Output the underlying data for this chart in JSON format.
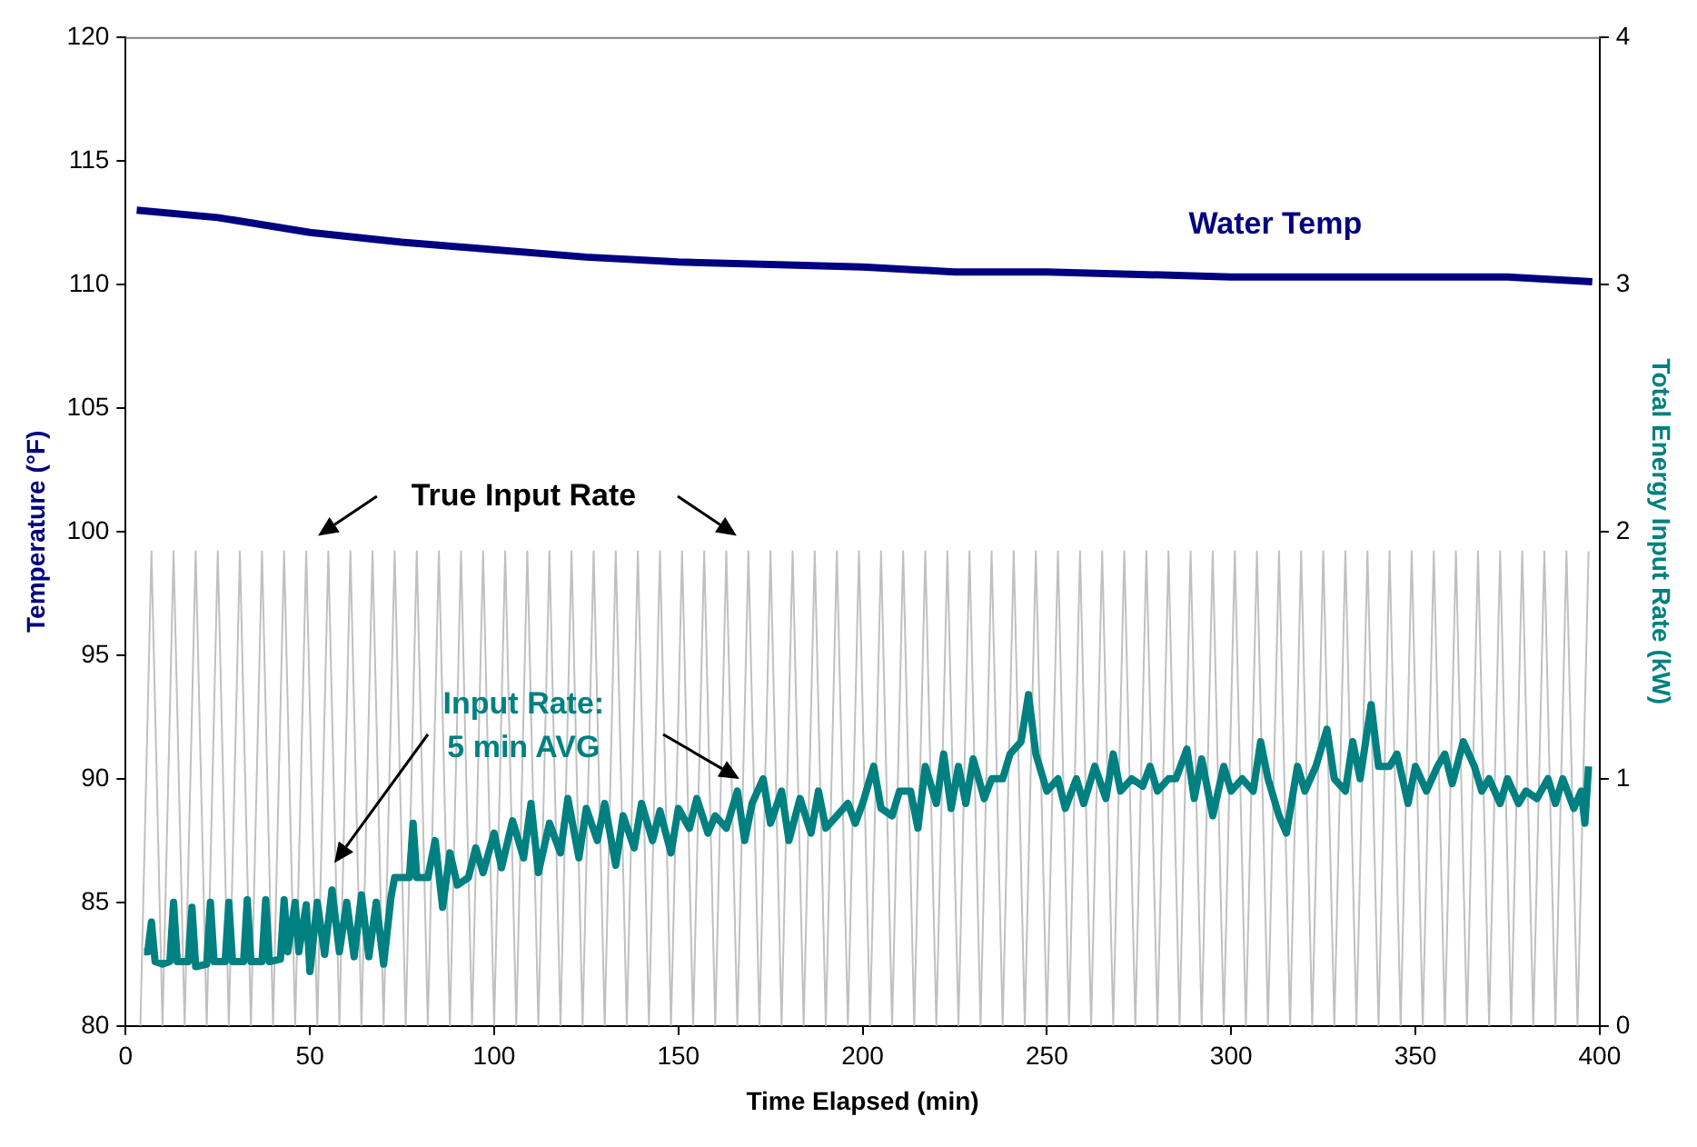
{
  "chart_data": {
    "type": "line",
    "xlabel": "Time Elapsed (min)",
    "ylabel": "Temperature (°F)",
    "y2label": "Total Energy Input Rate (kW)",
    "xlim": [
      0,
      400
    ],
    "xticks": [
      0,
      50,
      100,
      150,
      200,
      250,
      300,
      350,
      400
    ],
    "ylim": [
      80,
      120
    ],
    "yticks": [
      80,
      85,
      90,
      95,
      100,
      105,
      110,
      115,
      120
    ],
    "y2lim": [
      0,
      4
    ],
    "y2ticks": [
      0,
      1,
      2,
      3,
      4
    ],
    "grid": false,
    "legend": false,
    "series": [
      {
        "name": "True Input Rate",
        "color": "#c0c0c0",
        "axis": "y2",
        "x": [
          4,
          7,
          10,
          13,
          16,
          19,
          22,
          25,
          28,
          31,
          34,
          37,
          40,
          43,
          46,
          49,
          52,
          55,
          58,
          61,
          64,
          67,
          70,
          73,
          76,
          79,
          82,
          85,
          88,
          91,
          94,
          97,
          100,
          103,
          106,
          109,
          112,
          115,
          118,
          121,
          124,
          127,
          130,
          133,
          136,
          139,
          142,
          145,
          148,
          151,
          154,
          157,
          160,
          163,
          166,
          169,
          172,
          175,
          178,
          181,
          184,
          187,
          190,
          193,
          196,
          199,
          202,
          205,
          208,
          211,
          214,
          217,
          220,
          223,
          226,
          229,
          232,
          235,
          238,
          241,
          244,
          247,
          250,
          253,
          256,
          259,
          262,
          265,
          268,
          271,
          274,
          277,
          280,
          283,
          286,
          289,
          292,
          295,
          298,
          301,
          304,
          307,
          310,
          313,
          316,
          319,
          322,
          325,
          328,
          331,
          334,
          337,
          340,
          343,
          346,
          349,
          352,
          355,
          358,
          361,
          364,
          367,
          370,
          373,
          376,
          379,
          382,
          385,
          388,
          391,
          394,
          397
        ],
        "values": [
          0,
          1.92,
          0,
          1.92,
          0,
          1.92,
          0,
          1.92,
          0,
          1.92,
          0,
          1.92,
          0,
          1.92,
          0,
          1.92,
          0,
          1.92,
          0,
          1.92,
          0,
          1.92,
          0,
          1.92,
          0,
          1.92,
          0,
          1.92,
          0,
          1.92,
          0,
          1.92,
          0,
          1.92,
          0,
          1.92,
          0,
          1.92,
          0,
          1.92,
          0,
          1.92,
          0,
          1.92,
          0,
          1.92,
          0,
          1.92,
          0,
          1.92,
          0,
          1.92,
          0,
          1.92,
          0,
          1.92,
          0,
          1.92,
          0,
          1.92,
          0,
          1.92,
          0,
          1.92,
          0,
          1.92,
          0,
          1.92,
          0,
          1.92,
          0,
          1.92,
          0,
          1.92,
          0,
          1.92,
          0,
          1.92,
          0,
          1.92,
          0,
          1.92,
          0,
          1.92,
          0,
          1.92,
          0,
          1.92,
          0,
          1.92,
          0,
          1.92,
          0,
          1.92,
          0,
          1.92,
          0,
          1.92,
          0,
          1.92,
          0,
          1.92,
          0,
          1.92,
          0,
          1.92,
          0,
          1.92,
          0,
          1.92,
          0,
          1.92,
          0,
          1.92,
          0,
          1.92,
          0,
          1.92,
          0,
          1.92,
          0,
          1.92,
          0,
          1.92,
          0,
          1.92,
          0,
          1.92,
          0,
          1.92,
          0,
          1.92
        ]
      },
      {
        "name": "Input Rate:\n5 min AVG",
        "color": "#008080",
        "axis": "y2",
        "x": [
          5,
          6,
          7,
          8,
          10,
          12,
          13,
          14,
          17,
          18,
          19,
          22,
          23,
          24,
          27,
          28,
          29,
          32,
          33,
          34,
          37,
          38,
          39,
          42,
          43,
          44,
          46,
          47,
          49,
          50,
          52,
          54,
          56,
          58,
          60,
          62,
          64,
          66,
          68,
          70,
          72,
          73,
          77,
          78,
          79,
          82,
          84,
          86,
          88,
          90,
          93,
          95,
          97,
          100,
          102,
          105,
          108,
          110,
          112,
          115,
          118,
          120,
          123,
          125,
          128,
          130,
          133,
          135,
          138,
          140,
          143,
          145,
          148,
          150,
          153,
          155,
          158,
          160,
          163,
          166,
          168,
          170,
          173,
          175,
          178,
          180,
          183,
          186,
          188,
          190,
          193,
          196,
          198,
          200,
          203,
          205,
          208,
          210,
          213,
          215,
          217,
          220,
          222,
          224,
          226,
          228,
          230,
          233,
          235,
          238,
          240,
          243,
          245,
          247,
          250,
          253,
          255,
          258,
          260,
          263,
          266,
          268,
          270,
          273,
          276,
          278,
          280,
          283,
          285,
          288,
          290,
          292,
          295,
          298,
          300,
          303,
          306,
          308,
          310,
          313,
          315,
          318,
          320,
          323,
          326,
          328,
          331,
          333,
          335,
          338,
          340,
          343,
          345,
          348,
          350,
          353,
          356,
          358,
          360,
          363,
          366,
          368,
          370,
          373,
          375,
          378,
          380,
          383,
          386,
          388,
          390,
          393,
          395,
          396,
          397
        ],
        "values": [
          0.3,
          0.3,
          0.42,
          0.26,
          0.25,
          0.26,
          0.5,
          0.26,
          0.26,
          0.48,
          0.24,
          0.25,
          0.5,
          0.26,
          0.26,
          0.5,
          0.26,
          0.26,
          0.51,
          0.26,
          0.26,
          0.51,
          0.26,
          0.27,
          0.51,
          0.3,
          0.5,
          0.3,
          0.49,
          0.22,
          0.5,
          0.29,
          0.55,
          0.3,
          0.5,
          0.28,
          0.53,
          0.28,
          0.5,
          0.25,
          0.52,
          0.6,
          0.6,
          0.82,
          0.6,
          0.6,
          0.75,
          0.48,
          0.7,
          0.57,
          0.6,
          0.72,
          0.62,
          0.78,
          0.64,
          0.83,
          0.68,
          0.9,
          0.62,
          0.82,
          0.7,
          0.92,
          0.68,
          0.88,
          0.75,
          0.9,
          0.65,
          0.85,
          0.72,
          0.9,
          0.75,
          0.87,
          0.7,
          0.88,
          0.8,
          0.92,
          0.78,
          0.85,
          0.8,
          0.95,
          0.75,
          0.9,
          1.0,
          0.82,
          0.95,
          0.75,
          0.92,
          0.78,
          0.95,
          0.8,
          0.85,
          0.9,
          0.82,
          0.9,
          1.05,
          0.88,
          0.85,
          0.95,
          0.95,
          0.8,
          1.05,
          0.9,
          1.1,
          0.88,
          1.05,
          0.9,
          1.08,
          0.92,
          1.0,
          1.0,
          1.1,
          1.15,
          1.34,
          1.1,
          0.95,
          1.0,
          0.88,
          1.0,
          0.9,
          1.05,
          0.92,
          1.1,
          0.95,
          1.0,
          0.97,
          1.05,
          0.95,
          1.0,
          1.0,
          1.12,
          0.92,
          1.08,
          0.85,
          1.05,
          0.95,
          1.0,
          0.95,
          1.15,
          1.0,
          0.85,
          0.78,
          1.05,
          0.95,
          1.05,
          1.2,
          1.0,
          0.95,
          1.15,
          1.0,
          1.3,
          1.05,
          1.05,
          1.1,
          0.9,
          1.05,
          0.95,
          1.05,
          1.1,
          0.98,
          1.15,
          1.05,
          0.95,
          1.0,
          0.9,
          1.0,
          0.9,
          0.95,
          0.92,
          1.0,
          0.9,
          1.0,
          0.88,
          0.95,
          0.82,
          1.05
        ]
      },
      {
        "name": "Water Temp",
        "color": "#000080",
        "x": [
          3,
          25,
          50,
          75,
          100,
          125,
          150,
          175,
          200,
          225,
          250,
          275,
          300,
          325,
          350,
          375,
          398
        ],
        "values": [
          113.0,
          112.7,
          112.1,
          111.7,
          111.4,
          111.1,
          110.9,
          110.8,
          110.7,
          110.5,
          110.5,
          110.4,
          110.3,
          110.3,
          110.3,
          110.3,
          110.1
        ]
      }
    ]
  }
}
